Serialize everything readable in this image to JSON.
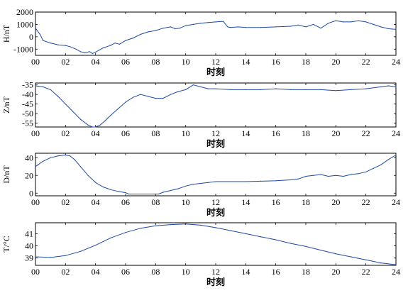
{
  "chart_data": [
    {
      "type": "line",
      "ylabel": "H/nT",
      "xlabel": "时刻",
      "xlim": [
        0,
        24
      ],
      "ylim": [
        -1500,
        2000
      ],
      "yticks": [
        2000,
        1000,
        0,
        -1000
      ],
      "xtick_labels": [
        "00",
        "02",
        "04",
        "06",
        "08",
        "10",
        "12",
        "14",
        "16",
        "18",
        "20",
        "22",
        "24"
      ],
      "color": "#1f4aa0",
      "x": [
        0,
        0.3,
        0.5,
        1,
        1.5,
        2,
        2.3,
        2.7,
        3,
        3.3,
        3.6,
        3.8,
        4.0,
        4.2,
        4.5,
        5,
        5.3,
        5.6,
        6,
        6.5,
        7,
        7.5,
        8,
        8.5,
        9,
        9.3,
        9.6,
        10,
        10.5,
        11,
        11.5,
        12,
        12.5,
        12.8,
        13,
        13.5,
        14,
        15,
        16,
        17,
        17.5,
        18,
        18.5,
        19,
        19.5,
        20,
        20.5,
        21,
        21.5,
        22,
        22.5,
        23,
        23.5,
        24
      ],
      "y": [
        700,
        200,
        -300,
        -500,
        -650,
        -700,
        -800,
        -1000,
        -1200,
        -1300,
        -1200,
        -1350,
        -1250,
        -1100,
        -900,
        -700,
        -500,
        -600,
        -300,
        -100,
        200,
        400,
        500,
        700,
        800,
        650,
        700,
        900,
        1000,
        1100,
        1150,
        1200,
        1250,
        800,
        750,
        800,
        750,
        750,
        800,
        850,
        950,
        800,
        1000,
        700,
        1100,
        1300,
        1200,
        1200,
        1300,
        1200,
        1000,
        800,
        650,
        600
      ]
    },
    {
      "type": "line",
      "ylabel": "Z/nT",
      "xlabel": "时刻",
      "xlim": [
        0,
        24
      ],
      "ylim": [
        -57,
        -34
      ],
      "yticks": [
        -35,
        -40,
        -45,
        -50,
        -55
      ],
      "xtick_labels": [
        "00",
        "02",
        "04",
        "06",
        "08",
        "10",
        "12",
        "14",
        "16",
        "18",
        "20",
        "22",
        "24"
      ],
      "color": "#1f4aa0",
      "x": [
        0,
        0.5,
        1,
        1.5,
        2,
        2.5,
        3,
        3.5,
        3.8,
        4,
        4.3,
        4.6,
        5,
        5.5,
        6,
        6.5,
        7,
        7.5,
        8,
        8.5,
        9,
        9.5,
        10,
        10.5,
        11,
        11.5,
        12,
        13,
        14,
        15,
        16,
        17,
        18,
        19,
        20,
        21,
        22,
        23,
        23.5,
        24
      ],
      "y": [
        -35.5,
        -36,
        -37.5,
        -41,
        -45,
        -49,
        -53,
        -56,
        -57,
        -57,
        -56,
        -54,
        -51,
        -47.5,
        -44,
        -41.5,
        -40,
        -41,
        -42,
        -42,
        -40,
        -38.5,
        -37.5,
        -35,
        -36,
        -37,
        -37,
        -37.5,
        -37.5,
        -37.5,
        -37,
        -37.5,
        -37.5,
        -37.5,
        -38,
        -37.5,
        -37,
        -36,
        -35.5,
        -36
      ]
    },
    {
      "type": "line",
      "ylabel": "D/nT",
      "xlabel": "时刻",
      "xlim": [
        0,
        24
      ],
      "ylim": [
        -3,
        45
      ],
      "yticks": [
        40,
        20,
        0
      ],
      "xtick_labels": [
        "00",
        "02",
        "04",
        "06",
        "08",
        "10",
        "12",
        "14",
        "16",
        "18",
        "20",
        "22",
        "24"
      ],
      "color": "#1f4aa0",
      "x": [
        0,
        0.5,
        1,
        1.5,
        2,
        2.3,
        2.6,
        3,
        3.5,
        4,
        4.5,
        5,
        5.5,
        6,
        6.2,
        8.2,
        8.5,
        9,
        9.5,
        10,
        10.5,
        11,
        11.5,
        12,
        13,
        14,
        15,
        16,
        17,
        17.5,
        18,
        18.5,
        19,
        19.5,
        20,
        20.5,
        21,
        21.5,
        22,
        22.5,
        23,
        23.5,
        24
      ],
      "y": [
        30,
        36,
        40,
        42,
        43,
        42,
        38,
        30,
        20,
        12,
        7,
        4,
        2,
        0.5,
        -1,
        -1,
        1,
        3,
        5,
        8,
        10,
        11,
        12,
        13,
        13,
        13,
        13.5,
        14,
        15,
        16,
        19,
        20,
        21,
        19,
        20,
        19,
        21,
        22,
        24,
        28,
        32,
        38,
        43
      ]
    },
    {
      "type": "line",
      "ylabel": "T/°C",
      "xlabel": "时刻",
      "xlim": [
        0,
        24
      ],
      "ylim": [
        38.4,
        41.9
      ],
      "yticks": [
        41,
        40,
        39
      ],
      "xtick_labels": [
        "00",
        "02",
        "04",
        "06",
        "08",
        "10",
        "12",
        "14",
        "16",
        "18",
        "20",
        "22",
        "24"
      ],
      "color": "#1f4aa0",
      "x": [
        0,
        1,
        2,
        3,
        4,
        5,
        6,
        7,
        8,
        9,
        10,
        11,
        12,
        13,
        14,
        15,
        16,
        17,
        18,
        19,
        20,
        21,
        22,
        23,
        24
      ],
      "y": [
        39.1,
        39.05,
        39.2,
        39.55,
        40.05,
        40.65,
        41.1,
        41.45,
        41.65,
        41.75,
        41.8,
        41.7,
        41.5,
        41.25,
        41.0,
        40.75,
        40.5,
        40.2,
        39.95,
        39.65,
        39.35,
        39.1,
        38.85,
        38.6,
        38.45
      ]
    }
  ]
}
